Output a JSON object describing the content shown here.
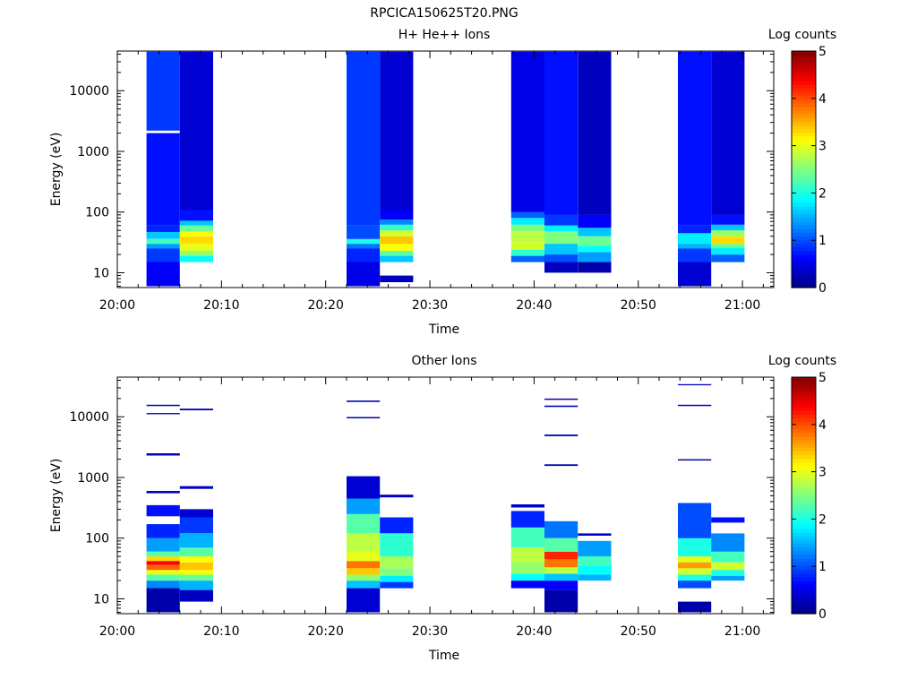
{
  "figure_title": "RPCICA150625T20.PNG",
  "chart_data": [
    {
      "type": "heatmap",
      "title": "H+ He++ Ions",
      "xlabel": "Time",
      "ylabel": "Energy (eV)",
      "x_ticks": [
        "20:00",
        "20:10",
        "20:20",
        "20:30",
        "20:40",
        "20:50",
        "21:00"
      ],
      "x_range_minutes": [
        0,
        63
      ],
      "y_scale": "log",
      "y_ticks": [
        "10",
        "100",
        "1000",
        "10000"
      ],
      "y_range": [
        5.7,
        45000
      ],
      "colorbar": {
        "label": "Log counts",
        "ticks": [
          "0",
          "1",
          "2",
          "3",
          "4",
          "5"
        ],
        "range": [
          0,
          5
        ],
        "colormap": "jet"
      },
      "columns": [
        {
          "t0": 2.8,
          "t1": 6.0,
          "cells": [
            [
              6,
              15,
              0.6
            ],
            [
              15,
              25,
              0.9
            ],
            [
              25,
              30,
              1.4
            ],
            [
              30,
              36,
              2.2
            ],
            [
              36,
              47,
              1.6
            ],
            [
              47,
              60,
              0.8
            ],
            [
              60,
              2000,
              0.7
            ],
            [
              2000,
              2200,
              null
            ],
            [
              2200,
              44000,
              0.9
            ]
          ]
        },
        {
          "t0": 6.0,
          "t1": 9.2,
          "cells": [
            [
              15,
              19,
              1.9
            ],
            [
              19,
              23,
              2.6
            ],
            [
              23,
              30,
              3.0
            ],
            [
              30,
              40,
              3.3
            ],
            [
              40,
              48,
              3.1
            ],
            [
              48,
              60,
              2.4
            ],
            [
              60,
              72,
              1.6
            ],
            [
              72,
              110,
              0.7
            ],
            [
              110,
              44000,
              0.4
            ]
          ]
        },
        {
          "t0": 22.0,
          "t1": 25.2,
          "cells": [
            [
              6,
              15,
              0.5
            ],
            [
              15,
              25,
              0.8
            ],
            [
              25,
              30,
              1.2
            ],
            [
              30,
              36,
              2.0
            ],
            [
              36,
              60,
              1.0
            ],
            [
              60,
              44000,
              0.9
            ]
          ]
        },
        {
          "t0": 25.2,
          "t1": 28.4,
          "cells": [
            [
              7,
              9,
              0.3
            ],
            [
              15,
              19,
              1.6
            ],
            [
              19,
              23,
              2.3
            ],
            [
              23,
              30,
              3.1
            ],
            [
              30,
              40,
              3.4
            ],
            [
              40,
              50,
              2.9
            ],
            [
              50,
              62,
              2.1
            ],
            [
              62,
              75,
              1.3
            ],
            [
              75,
              110,
              0.6
            ],
            [
              110,
              44000,
              0.4
            ]
          ]
        },
        {
          "t0": 37.8,
          "t1": 41.0,
          "cells": [
            [
              15,
              19,
              1.1
            ],
            [
              19,
              24,
              2.1
            ],
            [
              24,
              32,
              2.9
            ],
            [
              32,
              48,
              2.8
            ],
            [
              48,
              62,
              2.5
            ],
            [
              62,
              80,
              1.8
            ],
            [
              80,
              100,
              1.1
            ],
            [
              100,
              44000,
              0.5
            ]
          ]
        },
        {
          "t0": 41.0,
          "t1": 44.2,
          "cells": [
            [
              10,
              15,
              0.3
            ],
            [
              15,
              20,
              1.0
            ],
            [
              20,
              30,
              1.6
            ],
            [
              30,
              48,
              2.5
            ],
            [
              48,
              60,
              1.8
            ],
            [
              60,
              90,
              0.9
            ],
            [
              90,
              44000,
              0.7
            ]
          ]
        },
        {
          "t0": 44.2,
          "t1": 47.4,
          "cells": [
            [
              10,
              15,
              0.2
            ],
            [
              15,
              22,
              1.4
            ],
            [
              22,
              28,
              1.9
            ],
            [
              28,
              40,
              2.4
            ],
            [
              40,
              55,
              1.6
            ],
            [
              55,
              90,
              0.6
            ],
            [
              90,
              44000,
              0.3
            ]
          ]
        },
        {
          "t0": 53.8,
          "t1": 57.0,
          "cells": [
            [
              6,
              15,
              0.4
            ],
            [
              15,
              25,
              0.9
            ],
            [
              25,
              30,
              1.5
            ],
            [
              30,
              45,
              1.8
            ],
            [
              45,
              60,
              0.8
            ],
            [
              60,
              44000,
              0.7
            ]
          ]
        },
        {
          "t0": 57.0,
          "t1": 60.2,
          "cells": [
            [
              15,
              20,
              1.1
            ],
            [
              20,
              26,
              1.8
            ],
            [
              26,
              30,
              2.4
            ],
            [
              30,
              40,
              3.3
            ],
            [
              40,
              50,
              2.6
            ],
            [
              50,
              62,
              1.6
            ],
            [
              62,
              90,
              0.7
            ],
            [
              90,
              44000,
              0.4
            ]
          ]
        }
      ]
    },
    {
      "type": "heatmap",
      "title": "Other Ions",
      "xlabel": "Time",
      "ylabel": "Energy (eV)",
      "x_ticks": [
        "20:00",
        "20:10",
        "20:20",
        "20:30",
        "20:40",
        "20:50",
        "21:00"
      ],
      "x_range_minutes": [
        0,
        63
      ],
      "y_scale": "log",
      "y_ticks": [
        "10",
        "100",
        "1000",
        "10000"
      ],
      "y_range": [
        5.7,
        45000
      ],
      "colorbar": {
        "label": "Log counts",
        "ticks": [
          "0",
          "1",
          "2",
          "3",
          "4",
          "5"
        ],
        "range": [
          0,
          5
        ],
        "colormap": "jet"
      },
      "columns": [
        {
          "t0": 2.8,
          "t1": 6.0,
          "cells": [
            [
              6,
              15,
              0.2
            ],
            [
              15,
              20,
              1.3
            ],
            [
              20,
              25,
              2.3
            ],
            [
              25,
              30,
              3.0
            ],
            [
              30,
              36,
              3.9
            ],
            [
              36,
              42,
              4.4
            ],
            [
              42,
              50,
              3.3
            ],
            [
              50,
              60,
              2.3
            ],
            [
              60,
              100,
              1.4
            ],
            [
              100,
              170,
              0.8
            ],
            [
              170,
              230,
              null
            ],
            [
              230,
              350,
              0.7
            ],
            [
              550,
              600,
              0.3
            ],
            [
              2300,
              2500,
              0.3
            ],
            [
              11000,
              11500,
              0.2
            ],
            [
              15000,
              15800,
              0.3
            ]
          ]
        },
        {
          "t0": 6.0,
          "t1": 9.2,
          "cells": [
            [
              9,
              14,
              0.3
            ],
            [
              14,
              20,
              1.5
            ],
            [
              20,
              25,
              2.4
            ],
            [
              25,
              30,
              3.1
            ],
            [
              30,
              40,
              3.4
            ],
            [
              40,
              50,
              3.1
            ],
            [
              50,
              70,
              2.3
            ],
            [
              70,
              120,
              1.5
            ],
            [
              120,
              220,
              0.9
            ],
            [
              220,
              300,
              0.4
            ],
            [
              650,
              720,
              0.3
            ],
            [
              12800,
              13600,
              0.2
            ]
          ]
        },
        {
          "t0": 22.0,
          "t1": 25.2,
          "cells": [
            [
              6,
              15,
              0.4
            ],
            [
              15,
              20,
              1.6
            ],
            [
              20,
              25,
              2.6
            ],
            [
              25,
              32,
              3.4
            ],
            [
              32,
              42,
              3.8
            ],
            [
              42,
              60,
              3.0
            ],
            [
              60,
              120,
              2.8
            ],
            [
              120,
              250,
              2.3
            ],
            [
              250,
              450,
              1.4
            ],
            [
              450,
              1050,
              0.4
            ],
            [
              9400,
              9900,
              0.2
            ],
            [
              17500,
              18500,
              0.3
            ]
          ]
        },
        {
          "t0": 25.2,
          "t1": 28.4,
          "cells": [
            [
              15,
              19,
              0.9
            ],
            [
              19,
              24,
              1.8
            ],
            [
              24,
              32,
              2.5
            ],
            [
              32,
              50,
              2.7
            ],
            [
              50,
              120,
              2.1
            ],
            [
              120,
              220,
              0.8
            ],
            [
              470,
              520,
              0.3
            ]
          ]
        },
        {
          "t0": 37.8,
          "t1": 41.0,
          "cells": [
            [
              15,
              20,
              0.6
            ],
            [
              20,
              26,
              1.9
            ],
            [
              26,
              40,
              2.6
            ],
            [
              40,
              70,
              2.8
            ],
            [
              70,
              150,
              2.2
            ],
            [
              150,
              280,
              0.8
            ],
            [
              320,
              360,
              0.4
            ]
          ]
        },
        {
          "t0": 41.0,
          "t1": 44.2,
          "cells": [
            [
              6,
              14,
              0.2
            ],
            [
              14,
              20,
              0.6
            ],
            [
              20,
              26,
              1.6
            ],
            [
              26,
              33,
              2.8
            ],
            [
              33,
              45,
              3.8
            ],
            [
              45,
              60,
              4.2
            ],
            [
              60,
              100,
              2.3
            ],
            [
              100,
              190,
              1.2
            ],
            [
              1550,
              1650,
              0.2
            ],
            [
              4800,
              5100,
              0.2
            ],
            [
              14500,
              15300,
              0.3
            ],
            [
              19000,
              20000,
              0.2
            ]
          ]
        },
        {
          "t0": 44.2,
          "t1": 47.4,
          "cells": [
            [
              20,
              25,
              1.5
            ],
            [
              25,
              35,
              1.9
            ],
            [
              35,
              50,
              2.2
            ],
            [
              50,
              90,
              1.4
            ],
            [
              110,
              120,
              0.4
            ]
          ]
        },
        {
          "t0": 53.8,
          "t1": 57.0,
          "cells": [
            [
              6,
              9,
              0.2
            ],
            [
              15,
              20,
              1.0
            ],
            [
              20,
              25,
              2.0
            ],
            [
              25,
              32,
              2.9
            ],
            [
              32,
              40,
              3.6
            ],
            [
              40,
              50,
              3.0
            ],
            [
              50,
              100,
              2.0
            ],
            [
              100,
              380,
              1.0
            ],
            [
              1900,
              2000,
              0.2
            ],
            [
              15000,
              15800,
              0.3
            ],
            [
              33000,
              34500,
              0.3
            ]
          ]
        },
        {
          "t0": 57.0,
          "t1": 60.2,
          "cells": [
            [
              20,
              24,
              1.4
            ],
            [
              24,
              30,
              2.0
            ],
            [
              30,
              40,
              2.9
            ],
            [
              40,
              60,
              2.2
            ],
            [
              60,
              120,
              1.3
            ],
            [
              140,
              180,
              null
            ],
            [
              180,
              220,
              0.7
            ]
          ]
        }
      ]
    }
  ]
}
